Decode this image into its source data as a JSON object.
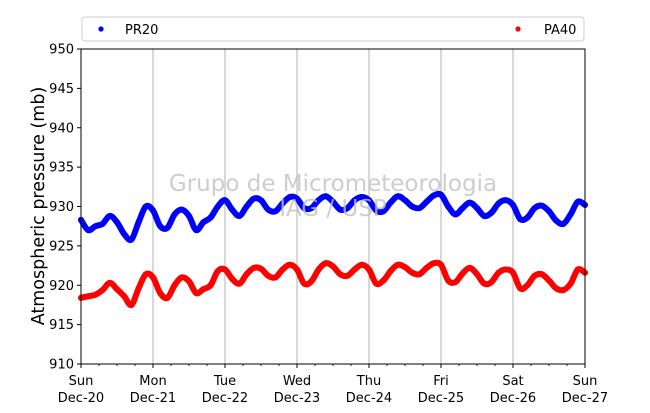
{
  "chart_data": {
    "type": "scatter",
    "ylabel": "Atmospheric pressure (mb)",
    "xlabel": "",
    "ylim": [
      910,
      950
    ],
    "xlim": [
      0,
      7
    ],
    "yticks": [
      910,
      915,
      920,
      925,
      930,
      935,
      940,
      945,
      950
    ],
    "xtick_labels": [
      {
        "x": 0,
        "day": "Sun",
        "date": "Dec-20"
      },
      {
        "x": 1,
        "day": "Mon",
        "date": "Dec-21"
      },
      {
        "x": 2,
        "day": "Tue",
        "date": "Dec-22"
      },
      {
        "x": 3,
        "day": "Wed",
        "date": "Dec-23"
      },
      {
        "x": 4,
        "day": "Thu",
        "date": "Dec-24"
      },
      {
        "x": 5,
        "day": "Fri",
        "date": "Dec-25"
      },
      {
        "x": 6,
        "day": "Sat",
        "date": "Dec-26"
      },
      {
        "x": 7,
        "day": "Sun",
        "date": "Dec-27"
      }
    ],
    "grid": "vertical",
    "legend_position": "top",
    "watermark": [
      "Grupo de Micrometeorologia",
      "IAG / USP"
    ],
    "series": [
      {
        "name": "PR20",
        "color": "#0000ff",
        "x": [
          0,
          0.1,
          0.2,
          0.3,
          0.4,
          0.5,
          0.6,
          0.7,
          0.8,
          0.9,
          1.0,
          1.1,
          1.2,
          1.3,
          1.4,
          1.5,
          1.6,
          1.7,
          1.8,
          1.9,
          2.0,
          2.1,
          2.2,
          2.3,
          2.4,
          2.5,
          2.6,
          2.7,
          2.8,
          2.9,
          3.0,
          3.1,
          3.2,
          3.3,
          3.4,
          3.5,
          3.6,
          3.7,
          3.8,
          3.9,
          4.0,
          4.1,
          4.2,
          4.3,
          4.4,
          4.5,
          4.6,
          4.7,
          4.8,
          4.9,
          5.0,
          5.1,
          5.2,
          5.3,
          5.4,
          5.5,
          5.6,
          5.7,
          5.8,
          5.9,
          6.0,
          6.1,
          6.2,
          6.3,
          6.4,
          6.5,
          6.6,
          6.7,
          6.8,
          6.9,
          7.0
        ],
        "y": [
          928.3,
          927.0,
          927.5,
          927.8,
          928.8,
          928.0,
          926.5,
          925.8,
          928.0,
          930.0,
          929.5,
          927.5,
          927.3,
          929.0,
          929.6,
          928.8,
          927.0,
          928.0,
          928.6,
          930.0,
          930.8,
          929.6,
          928.8,
          930.0,
          931.0,
          930.8,
          929.6,
          929.4,
          930.4,
          931.2,
          931.0,
          929.8,
          929.8,
          930.8,
          931.3,
          930.6,
          929.6,
          929.8,
          930.8,
          931.2,
          930.8,
          929.5,
          929.4,
          930.5,
          931.3,
          930.8,
          930.0,
          929.8,
          930.6,
          931.4,
          931.5,
          930.0,
          929.0,
          929.8,
          930.5,
          929.8,
          928.8,
          929.2,
          930.4,
          930.8,
          930.2,
          928.4,
          928.6,
          929.8,
          930.1,
          929.4,
          928.2,
          927.8,
          929.0,
          930.6,
          930.2
        ]
      },
      {
        "name": "PA40",
        "color": "#ff0000",
        "x": [
          0,
          0.1,
          0.2,
          0.3,
          0.4,
          0.5,
          0.6,
          0.7,
          0.8,
          0.9,
          1.0,
          1.1,
          1.2,
          1.3,
          1.4,
          1.5,
          1.6,
          1.7,
          1.8,
          1.9,
          2.0,
          2.1,
          2.2,
          2.3,
          2.4,
          2.5,
          2.6,
          2.7,
          2.8,
          2.9,
          3.0,
          3.1,
          3.2,
          3.3,
          3.4,
          3.5,
          3.6,
          3.7,
          3.8,
          3.9,
          4.0,
          4.1,
          4.2,
          4.3,
          4.4,
          4.5,
          4.6,
          4.7,
          4.8,
          4.9,
          5.0,
          5.1,
          5.2,
          5.3,
          5.4,
          5.5,
          5.6,
          5.7,
          5.8,
          5.9,
          6.0,
          6.1,
          6.2,
          6.3,
          6.4,
          6.5,
          6.6,
          6.7,
          6.8,
          6.9,
          7.0
        ],
        "y": [
          918.4,
          918.6,
          918.8,
          919.4,
          920.3,
          919.5,
          918.6,
          917.5,
          919.6,
          921.4,
          921.0,
          919.0,
          918.4,
          920.0,
          921.0,
          920.5,
          919.0,
          919.5,
          920.0,
          921.8,
          922.0,
          920.8,
          920.2,
          921.4,
          922.2,
          922.1,
          921.2,
          921.0,
          922.0,
          922.6,
          922.0,
          920.2,
          920.5,
          922.0,
          922.8,
          922.4,
          921.4,
          921.2,
          922.0,
          922.6,
          922.0,
          920.2,
          920.6,
          921.8,
          922.6,
          922.3,
          921.6,
          921.4,
          922.2,
          922.8,
          922.6,
          920.6,
          920.4,
          921.5,
          922.2,
          921.4,
          920.2,
          920.4,
          921.6,
          922.0,
          921.6,
          919.6,
          920.0,
          921.2,
          921.4,
          920.6,
          919.6,
          919.4,
          920.2,
          922.0,
          921.6
        ]
      }
    ]
  }
}
